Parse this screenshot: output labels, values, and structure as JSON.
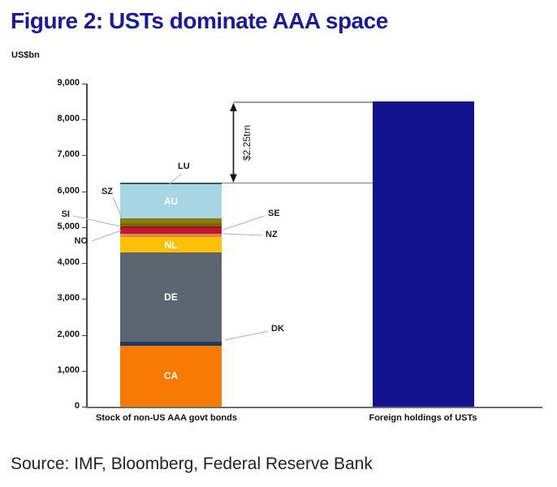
{
  "title": "Figure 2: USTs dominate AAA space",
  "source": "Source: IMF, Bloomberg, Federal Reserve Bank",
  "colors": {
    "title": "#1b1b96",
    "axis": "#4a4a4a",
    "connector_line": "#b3b3b3",
    "annotation_arrow": "#111111",
    "right_bar": "#12128f"
  },
  "chart_data": {
    "type": "bar",
    "subtype": "stacked-comparison",
    "title": "Figure 2: USTs dominate AAA space",
    "unit_label": "US$bn",
    "xlabel": "",
    "ylabel": "US$bn",
    "ylim": [
      0,
      9000
    ],
    "ytick_interval": 1000,
    "ytick_labels": [
      "0",
      "1,000",
      "2,000",
      "3,000",
      "4,000",
      "5,000",
      "6,000",
      "7,000",
      "8,000",
      "9,000"
    ],
    "grid": false,
    "legend": "none (segments labelled directly on/next to bar)",
    "categories": [
      "Stock of non-US AAA govt bonds",
      "Foreign holdings of USTs"
    ],
    "annotation": {
      "text": "$2.25trn",
      "gap_from": 6250,
      "gap_to": 8500
    },
    "bars": [
      {
        "category": "Stock of non-US AAA govt bonds",
        "total": 6250,
        "segments_bottom_to_top": [
          {
            "code": "CA",
            "value": 1700,
            "color": "#f87a06",
            "label_inside": true
          },
          {
            "code": "DK",
            "value": 120,
            "color": "#1c3a5e",
            "label_inside": false
          },
          {
            "code": "DE",
            "value": 2470,
            "color": "#5a6670",
            "label_inside": true
          },
          {
            "code": "NL",
            "value": 440,
            "color": "#ffc003",
            "label_inside": true
          },
          {
            "code": "NZ",
            "value": 90,
            "color": "#db8a4d",
            "label_inside": false
          },
          {
            "code": "SE",
            "value": 150,
            "color": "#c41734",
            "label_inside": false
          },
          {
            "code": "NO",
            "value": 60,
            "color": "#8f1a22",
            "label_inside": false
          },
          {
            "code": "SI",
            "value": 90,
            "color": "#7a6606",
            "label_inside": false
          },
          {
            "code": "SZ",
            "value": 120,
            "color": "#8a7d0c",
            "label_inside": false
          },
          {
            "code": "AU",
            "value": 960,
            "color": "#a6d6e3",
            "label_inside": true
          },
          {
            "code": "LU",
            "value": 50,
            "color": "#2f6061",
            "label_inside": false
          }
        ]
      },
      {
        "category": "Foreign holdings of USTs",
        "total": 8500,
        "color": "#12128f"
      }
    ]
  }
}
